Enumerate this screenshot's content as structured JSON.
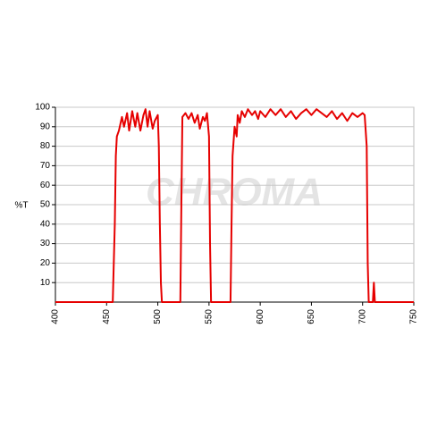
{
  "chart_data": {
    "type": "line",
    "y_label": "%T",
    "watermark": "CHROMA",
    "xlim": [
      400,
      750
    ],
    "xticks": [
      400,
      450,
      500,
      550,
      600,
      650,
      700,
      750
    ],
    "ylim": [
      0,
      100
    ],
    "yticks": [
      10,
      20,
      30,
      40,
      50,
      60,
      70,
      80,
      90,
      100
    ],
    "grid": true,
    "series": [
      {
        "color": "#e60000",
        "x": [
          400,
          455,
          456,
          458,
          459,
          460,
          462,
          465,
          467,
          470,
          472,
          475,
          478,
          480,
          483,
          486,
          488,
          490,
          492,
          495,
          497,
          500,
          501,
          502,
          503,
          504,
          522,
          523,
          524,
          527,
          530,
          533,
          536,
          539,
          541,
          544,
          546,
          548,
          550,
          551,
          552,
          571,
          572,
          573,
          575,
          577,
          578,
          580,
          582,
          585,
          588,
          592,
          595,
          598,
          600,
          605,
          610,
          615,
          620,
          625,
          630,
          635,
          640,
          645,
          650,
          655,
          660,
          665,
          670,
          675,
          680,
          685,
          690,
          695,
          700,
          702,
          704,
          705,
          706,
          710,
          711,
          712,
          750
        ],
        "values": [
          0,
          0,
          0,
          40,
          75,
          85,
          88,
          95,
          90,
          97,
          88,
          98,
          90,
          97,
          88,
          96,
          99,
          90,
          98,
          89,
          93,
          96,
          80,
          40,
          10,
          0,
          0,
          50,
          95,
          97,
          94,
          97,
          92,
          96,
          89,
          95,
          93,
          97,
          85,
          30,
          0,
          0,
          40,
          75,
          90,
          85,
          96,
          92,
          98,
          95,
          99,
          96,
          98,
          94,
          98,
          95,
          99,
          96,
          99,
          95,
          98,
          94,
          97,
          99,
          96,
          99,
          97,
          95,
          98,
          94,
          97,
          93,
          97,
          95,
          97,
          96,
          80,
          20,
          0,
          0,
          10,
          0,
          0
        ]
      }
    ]
  }
}
